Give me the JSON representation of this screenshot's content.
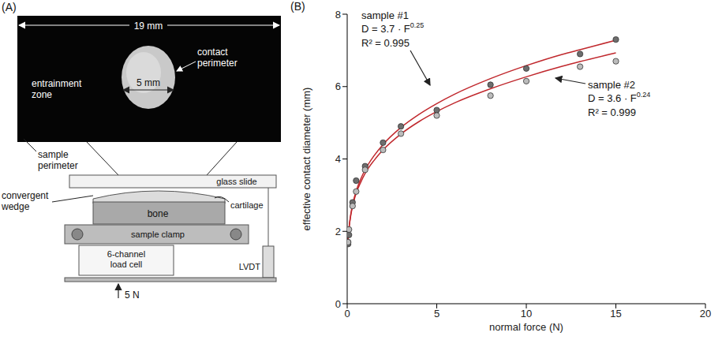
{
  "diagram": {
    "panel_label": "(A)",
    "photo": {
      "width_label": "19 mm",
      "contact_width_label": "5 mm",
      "contact_perimeter": "contact perimeter",
      "entrainment_zone": "entrainment zone",
      "sample_perimeter": "sample perimeter"
    },
    "schematic": {
      "convergent_wedge": "convergent wedge",
      "glass_slide": "glass slide",
      "bone": "bone",
      "cartilage": "cartilage",
      "sample_clamp": "sample clamp",
      "lvdt": "LVDT",
      "load_cell": "6-channel load cell",
      "load": "5 N"
    }
  },
  "chart_data": {
    "type": "scatter",
    "panel_label": "(B)",
    "x_label": "normal force (N)",
    "y_label": "effective contact diameter (mm)",
    "xlim": [
      0,
      20
    ],
    "xticks": [
      0,
      5,
      10,
      15,
      20
    ],
    "ylim": [
      0,
      8
    ],
    "yticks": [
      0,
      2,
      4,
      6,
      8
    ],
    "grid": false,
    "series": [
      {
        "name": "sample #1",
        "color": "#6e6e6e",
        "marker": "circle",
        "x": [
          0.05,
          0.05,
          0.1,
          0.3,
          0.5,
          1,
          2,
          3,
          5,
          8,
          10,
          13,
          15
        ],
        "values": [
          1.65,
          1.7,
          1.9,
          2.8,
          3.4,
          3.8,
          4.45,
          4.9,
          5.35,
          6.05,
          6.5,
          6.9,
          7.3
        ],
        "equation": "D = 3.7 · F",
        "equation_exponent": "0.25",
        "r_squared": "R² = 0.995",
        "fit": {
          "type": "line",
          "color": "#c0282d",
          "x": [
            0.05,
            0.1,
            0.2,
            0.3,
            0.5,
            0.75,
            1,
            1.5,
            2,
            3,
            4,
            5,
            6,
            8,
            10,
            12,
            13,
            15
          ],
          "values": [
            1.75,
            2.08,
            2.47,
            2.74,
            3.11,
            3.44,
            3.7,
            4.09,
            4.4,
            4.87,
            5.23,
            5.53,
            5.79,
            6.22,
            6.58,
            6.89,
            7.02,
            7.28
          ]
        }
      },
      {
        "name": "sample #2",
        "color": "#bcbcbc",
        "marker": "circle",
        "x": [
          0.05,
          0.1,
          0.3,
          0.5,
          1,
          2,
          3,
          5,
          8,
          10,
          13,
          15
        ],
        "values": [
          1.7,
          2.05,
          2.7,
          3.1,
          3.7,
          4.25,
          4.7,
          5.2,
          5.75,
          6.15,
          6.55,
          6.7
        ],
        "equation": "D = 3.6 · F",
        "equation_exponent": "0.24",
        "r_squared": "R² = 0.999",
        "fit": {
          "type": "line",
          "color": "#c0282d",
          "x": [
            0.05,
            0.1,
            0.2,
            0.3,
            0.5,
            0.75,
            1,
            1.5,
            2,
            3,
            4,
            5,
            6,
            8,
            10,
            12,
            13,
            15
          ],
          "values": [
            1.75,
            2.07,
            2.44,
            2.69,
            3.05,
            3.35,
            3.6,
            3.96,
            4.25,
            4.69,
            5.03,
            5.31,
            5.55,
            5.94,
            6.27,
            6.56,
            6.69,
            6.93
          ]
        }
      }
    ]
  }
}
